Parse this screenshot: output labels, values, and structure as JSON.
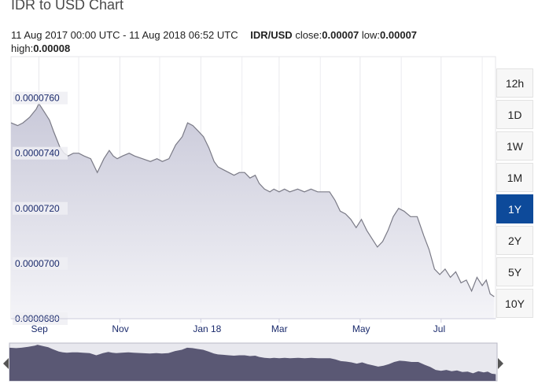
{
  "title": "IDR to USD Chart",
  "meta": {
    "date_range": "11 Aug 2017 00:00 UTC - 11 Aug 2018 06:52 UTC",
    "pair": "IDR/USD",
    "close_label": "close:",
    "close_value": "0.00007",
    "low_label": "low:",
    "low_value": "0.00007",
    "high_label": "high:",
    "high_value": "0.00008"
  },
  "range_buttons": [
    "12h",
    "1D",
    "1W",
    "1M",
    "1Y",
    "2Y",
    "5Y",
    "10Y"
  ],
  "active_range": "1Y",
  "colors": {
    "line": "#7a7a86",
    "area_top": "#c9c9d9",
    "area_bottom": "#f4f4f8",
    "navigator": "#5a5874",
    "active_button": "#0d4a9a"
  },
  "chart_data": {
    "type": "area",
    "ylim": [
      6.8e-05,
      7.75e-05
    ],
    "y_ticks": [
      "0.0000760",
      "0.0000740",
      "0.0000720",
      "0.0000700",
      "0.0000680"
    ],
    "y_tick_values": [
      7.6e-05,
      7.4e-05,
      7.2e-05,
      7e-05,
      6.8e-05
    ],
    "x_ticks": [
      "Sep",
      "Nov",
      "Jan 18",
      "Mar",
      "May",
      "Jul"
    ],
    "x_tick_dates": [
      "2017-09-01",
      "2017-11-01",
      "2018-01-01",
      "2018-03-01",
      "2018-05-01",
      "2018-07-01"
    ],
    "xlim": [
      "2017-08-11",
      "2018-08-11"
    ],
    "series": [
      {
        "x": [
          "2017-08-11",
          "2017-08-16",
          "2017-08-20",
          "2017-08-25",
          "2017-08-30",
          "2017-09-01",
          "2017-09-05",
          "2017-09-09",
          "2017-09-12",
          "2017-09-17",
          "2017-09-20",
          "2017-09-23",
          "2017-09-27",
          "2017-10-01",
          "2017-10-05",
          "2017-10-10",
          "2017-10-15",
          "2017-10-20",
          "2017-10-24",
          "2017-10-27",
          "2017-10-30",
          "2017-11-03",
          "2017-11-08",
          "2017-11-12",
          "2017-11-18",
          "2017-11-24",
          "2017-11-29",
          "2017-12-03",
          "2017-12-08",
          "2017-12-13",
          "2017-12-18",
          "2017-12-22",
          "2017-12-26",
          "2017-12-30",
          "2018-01-03",
          "2018-01-07",
          "2018-01-11",
          "2018-01-14",
          "2018-01-18",
          "2018-01-22",
          "2018-01-26",
          "2018-01-30",
          "2018-02-03",
          "2018-02-07",
          "2018-02-11",
          "2018-02-14",
          "2018-02-18",
          "2018-02-22",
          "2018-02-25",
          "2018-03-01",
          "2018-03-05",
          "2018-03-09",
          "2018-03-15",
          "2018-03-20",
          "2018-03-25",
          "2018-03-30",
          "2018-04-04",
          "2018-04-08",
          "2018-04-12",
          "2018-04-16",
          "2018-04-20",
          "2018-04-24",
          "2018-04-28",
          "2018-05-02",
          "2018-05-06",
          "2018-05-10",
          "2018-05-14",
          "2018-05-18",
          "2018-05-22",
          "2018-05-26",
          "2018-05-30",
          "2018-06-03",
          "2018-06-08",
          "2018-06-13",
          "2018-06-18",
          "2018-06-22",
          "2018-06-26",
          "2018-06-30",
          "2018-07-04",
          "2018-07-08",
          "2018-07-12",
          "2018-07-16",
          "2018-07-20",
          "2018-07-24",
          "2018-07-28",
          "2018-08-01",
          "2018-08-04",
          "2018-08-07",
          "2018-08-10"
        ],
        "y": [
          7.51e-05,
          7.5e-05,
          7.51e-05,
          7.53e-05,
          7.56e-05,
          7.58e-05,
          7.55e-05,
          7.52e-05,
          7.48e-05,
          7.42e-05,
          7.4e-05,
          7.39e-05,
          7.4e-05,
          7.4e-05,
          7.39e-05,
          7.38e-05,
          7.33e-05,
          7.38e-05,
          7.41e-05,
          7.39e-05,
          7.38e-05,
          7.39e-05,
          7.4e-05,
          7.39e-05,
          7.38e-05,
          7.37e-05,
          7.38e-05,
          7.37e-05,
          7.38e-05,
          7.43e-05,
          7.46e-05,
          7.51e-05,
          7.5e-05,
          7.48e-05,
          7.46e-05,
          7.42e-05,
          7.37e-05,
          7.35e-05,
          7.34e-05,
          7.33e-05,
          7.32e-05,
          7.33e-05,
          7.33e-05,
          7.31e-05,
          7.32e-05,
          7.29e-05,
          7.27e-05,
          7.26e-05,
          7.27e-05,
          7.26e-05,
          7.27e-05,
          7.26e-05,
          7.27e-05,
          7.26e-05,
          7.27e-05,
          7.26e-05,
          7.26e-05,
          7.26e-05,
          7.23e-05,
          7.19e-05,
          7.18e-05,
          7.16e-05,
          7.13e-05,
          7.16e-05,
          7.12e-05,
          7.09e-05,
          7.06e-05,
          7.08e-05,
          7.12e-05,
          7.17e-05,
          7.2e-05,
          7.19e-05,
          7.17e-05,
          7.17e-05,
          7.1e-05,
          7.05e-05,
          6.98e-05,
          6.96e-05,
          6.98e-05,
          6.95e-05,
          6.97e-05,
          6.93e-05,
          6.94e-05,
          6.9e-05,
          6.95e-05,
          6.92e-05,
          6.94e-05,
          6.89e-05,
          6.88e-05
        ]
      }
    ],
    "grid": true,
    "navigator": true
  }
}
